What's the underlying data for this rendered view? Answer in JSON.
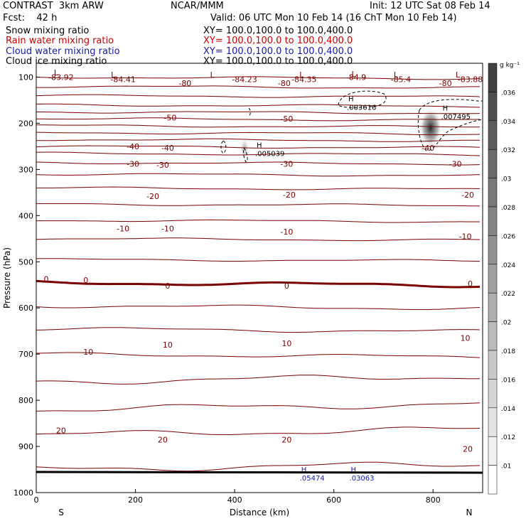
{
  "header": {
    "left_title": "CONTRAST  3km ARW",
    "center_title": "NCAR/MMM",
    "init": "Init: 12 UTC Sat 08 Feb 14",
    "fcst_label": "Fcst:    42 h",
    "valid": "Valid: 06 UTC Mon 10 Feb 14 (16 ChT Mon 10 Feb 14)"
  },
  "fields": [
    {
      "label": "Snow mixing ratio",
      "xy": "XY= 100.0,100.0 to 100.0,400.0",
      "color": "#000000"
    },
    {
      "label": "Rain water mixing ratio",
      "xy": "XY= 100.0,100.0 to 100.0,400.0",
      "color": "#d00000"
    },
    {
      "label": "Cloud water mixing ratio",
      "xy": "XY= 100.0,100.0 to 100.0,400.0",
      "color": "#1a1aa6"
    },
    {
      "label": "Cloud ice mixing ratio",
      "xy": "XY= 100.0,100.0 to 100.0,400.0",
      "color": "#000000"
    }
  ],
  "chart_data": {
    "type": "contour",
    "xlabel": "Distance (km)",
    "ylabel": "Pressure (hPa)",
    "xlim": [
      0,
      900
    ],
    "ylim": [
      1000,
      70
    ],
    "x_ticks": [
      0,
      200,
      400,
      600,
      800
    ],
    "y_ticks": [
      100,
      200,
      300,
      400,
      500,
      600,
      700,
      800,
      900,
      1000
    ],
    "x_endpoint_labels": {
      "left": "S",
      "right": "N"
    },
    "colorbar": {
      "unit": "g kg⁻¹",
      "levels": [
        0.01,
        0.012,
        0.014,
        0.016,
        0.018,
        0.02,
        0.022,
        0.024,
        0.026,
        0.028,
        0.03,
        0.032,
        0.034,
        0.036
      ],
      "tick_labels": [
        ".01",
        ".012",
        ".014",
        ".016",
        ".018",
        ".02",
        ".022",
        ".024",
        ".026",
        ".028",
        ".03",
        ".032",
        ".034",
        ".036"
      ]
    },
    "temperature_isotherms": {
      "color": "#7a0000",
      "pressure_levels": [
        100,
        120,
        140,
        160,
        175,
        190,
        205,
        220,
        235,
        250,
        265,
        285,
        310,
        340,
        375,
        410,
        450,
        495,
        545,
        595,
        645,
        700,
        760,
        820,
        875,
        950
      ]
    },
    "line_labels": [
      {
        "text": "-83.92",
        "x": 50,
        "p": 100
      },
      {
        "text": "-84.41",
        "x": 175,
        "p": 105
      },
      {
        "text": "-80",
        "x": 300,
        "p": 113
      },
      {
        "text": "-84.23",
        "x": 420,
        "p": 105
      },
      {
        "text": "-80",
        "x": 500,
        "p": 113
      },
      {
        "text": "-84.35",
        "x": 540,
        "p": 105
      },
      {
        "text": "-84.9",
        "x": 645,
        "p": 100
      },
      {
        "text": "-85.4",
        "x": 735,
        "p": 105
      },
      {
        "text": "-80",
        "x": 825,
        "p": 113
      },
      {
        "text": "-83.88",
        "x": 875,
        "p": 105
      },
      {
        "text": "-50",
        "x": 270,
        "p": 188
      },
      {
        "text": "-50",
        "x": 505,
        "p": 190
      },
      {
        "text": "-40",
        "x": 195,
        "p": 250
      },
      {
        "text": "-40",
        "x": 265,
        "p": 253
      },
      {
        "text": "-40",
        "x": 790,
        "p": 253
      },
      {
        "text": "-30",
        "x": 195,
        "p": 288
      },
      {
        "text": "-30",
        "x": 255,
        "p": 290
      },
      {
        "text": "-30",
        "x": 505,
        "p": 288
      },
      {
        "text": "-30",
        "x": 845,
        "p": 288
      },
      {
        "text": "-20",
        "x": 235,
        "p": 358
      },
      {
        "text": "-20",
        "x": 510,
        "p": 355
      },
      {
        "text": "-20",
        "x": 870,
        "p": 355
      },
      {
        "text": "-10",
        "x": 175,
        "p": 428
      },
      {
        "text": "-10",
        "x": 265,
        "p": 428
      },
      {
        "text": "-10",
        "x": 505,
        "p": 435
      },
      {
        "text": "-10",
        "x": 865,
        "p": 445
      },
      {
        "text": "0",
        "x": 20,
        "p": 537
      },
      {
        "text": "0",
        "x": 100,
        "p": 540
      },
      {
        "text": "0",
        "x": 265,
        "p": 552
      },
      {
        "text": "0",
        "x": 505,
        "p": 552
      },
      {
        "text": "0",
        "x": 875,
        "p": 547
      },
      {
        "text": "10",
        "x": 105,
        "p": 695
      },
      {
        "text": "10",
        "x": 265,
        "p": 680
      },
      {
        "text": "10",
        "x": 505,
        "p": 677
      },
      {
        "text": "10",
        "x": 865,
        "p": 665
      },
      {
        "text": "20",
        "x": 50,
        "p": 865
      },
      {
        "text": "20",
        "x": 255,
        "p": 885
      },
      {
        "text": "20",
        "x": 505,
        "p": 885
      },
      {
        "text": "20",
        "x": 870,
        "p": 905
      }
    ],
    "low_markers": [
      {
        "text": "L",
        "x": 40,
        "p": 90
      },
      {
        "text": "L",
        "x": 155,
        "p": 95
      },
      {
        "text": "L",
        "x": 355,
        "p": 95
      },
      {
        "text": "L",
        "x": 535,
        "p": 95
      },
      {
        "text": "L",
        "x": 640,
        "p": 93
      },
      {
        "text": "L",
        "x": 725,
        "p": 95
      },
      {
        "text": "L",
        "x": 850,
        "p": 95
      }
    ],
    "highs": [
      {
        "text": ".003616",
        "x": 655,
        "p": 165,
        "color": "#000000"
      },
      {
        "text": ".007495",
        "x": 845,
        "p": 185,
        "color": "#000000"
      },
      {
        "text": ".005039",
        "x": 470,
        "p": 265,
        "color": "#000000"
      },
      {
        "text": ".05474",
        "x": 560,
        "p": 968,
        "color": "#1a1aa6"
      },
      {
        "text": ".03063",
        "x": 660,
        "p": 968,
        "color": "#1a1aa6"
      }
    ],
    "shading": [
      {
        "x": 795,
        "p": 210,
        "max": 0.036
      },
      {
        "x": 420,
        "p": 255,
        "max": 0.014
      }
    ]
  }
}
